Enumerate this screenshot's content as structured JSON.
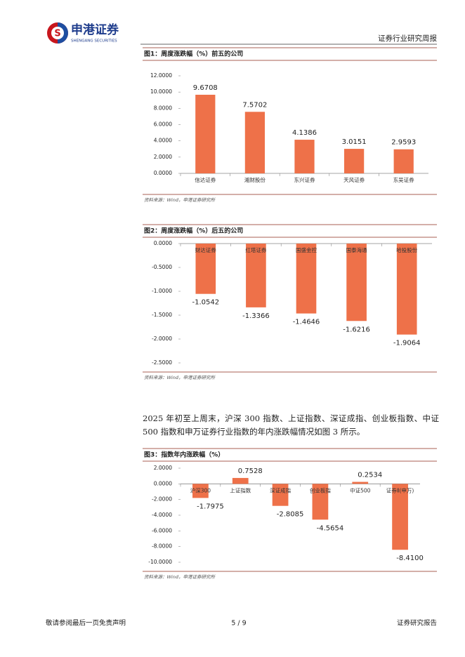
{
  "header": {
    "logo_cn": "申港证券",
    "logo_en": "SHENGANG SECURITIES",
    "report_type": "证券行业研究周报"
  },
  "chart_data": [
    {
      "type": "bar",
      "title": "图1：周度涨跌幅（%）前五的公司",
      "source": "资料来源：Wind，申港证券研究所",
      "categories": [
        "信达证券",
        "湘财股份",
        "东兴证券",
        "天风证券",
        "东吴证券"
      ],
      "values": [
        9.6708,
        7.5702,
        4.1386,
        3.0151,
        2.9593
      ],
      "color": "#ee7149",
      "ylim": [
        0,
        12
      ],
      "yticks": [
        {
          "value": 0,
          "label": "0.0000"
        },
        {
          "value": 2,
          "label": "2.0000"
        },
        {
          "value": 4,
          "label": "4.0000"
        },
        {
          "value": 6,
          "label": "6.0000"
        },
        {
          "value": 8,
          "label": "8.0000"
        },
        {
          "value": 10,
          "label": "10.0000"
        },
        {
          "value": 12,
          "label": "12.0000"
        }
      ]
    },
    {
      "type": "bar",
      "title": "图2：周度涨跌幅（%）后五的公司",
      "source": "资料来源：Wind，申港证券研究所",
      "categories": [
        "财达证券",
        "红塔证券",
        "国盛金控",
        "国泰海通",
        "哈投股份"
      ],
      "values": [
        -1.0542,
        -1.3366,
        -1.4646,
        -1.6216,
        -1.9064
      ],
      "color": "#ee7149",
      "ylim": [
        -2.5,
        0
      ],
      "yticks": [
        {
          "value": 0,
          "label": "0.0000"
        },
        {
          "value": -0.5,
          "label": "-0.5000"
        },
        {
          "value": -1,
          "label": "-1.0000"
        },
        {
          "value": -1.5,
          "label": "-1.5000"
        },
        {
          "value": -2,
          "label": "-2.0000"
        },
        {
          "value": -2.5,
          "label": "-2.5000"
        }
      ]
    },
    {
      "type": "bar",
      "title": "图3：指数年内涨跌幅（%）",
      "source": "资料来源：Wind，申港证券研究所",
      "categories": [
        "沪深300",
        "上证指数",
        "深证成指",
        "创业板指",
        "中证500",
        "证券Ⅱ(申万)"
      ],
      "values": [
        -1.7975,
        0.7528,
        -2.8085,
        -4.5654,
        0.2534,
        -8.41
      ],
      "value_labels": [
        "-1.7975",
        "0.7528",
        "-2.8085",
        "-4.5654",
        "0.2534",
        "-8.4100"
      ],
      "color": "#ee7149",
      "ylim": [
        -10,
        2
      ],
      "yticks": [
        {
          "value": 2,
          "label": "2.0000"
        },
        {
          "value": 0,
          "label": "0.0000"
        },
        {
          "value": -2,
          "label": "-2.0000"
        },
        {
          "value": -4,
          "label": "-4.0000"
        },
        {
          "value": -6,
          "label": "-6.0000"
        },
        {
          "value": -8,
          "label": "-8.0000"
        },
        {
          "value": -10,
          "label": "-10.0000"
        }
      ]
    }
  ],
  "body_text": "2025 年初至上周末，沪深 300 指数、上证指数、深证成指、创业板指数、中证 500 指数和申万证券行业指数的年内涨跌幅情况如图 3 所示。",
  "footer": {
    "disclaimer": "敬请参阅最后一页免责声明",
    "page": "5 / 9",
    "doc_type": "证券研究报告"
  }
}
